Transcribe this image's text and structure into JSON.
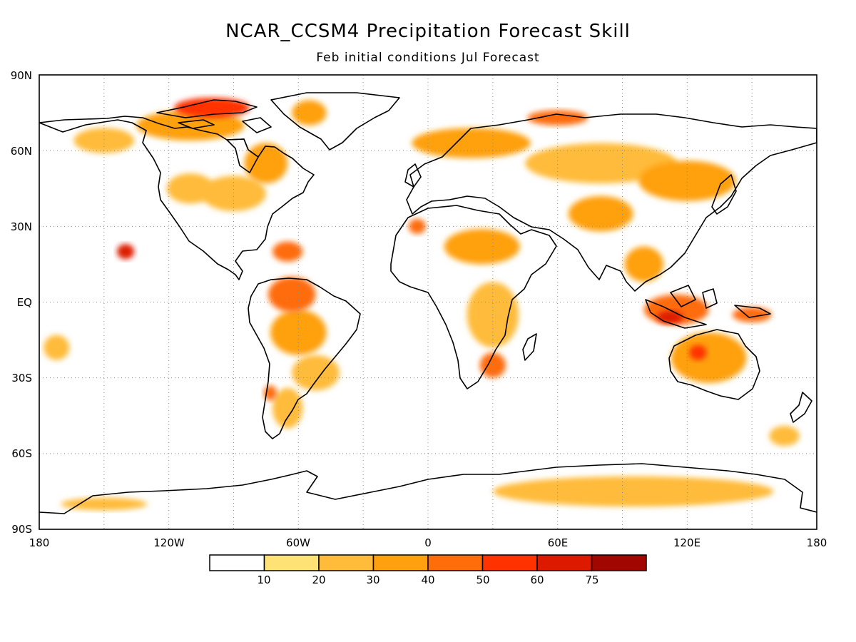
{
  "title": "NCAR_CCSM4 Precipitation Forecast Skill",
  "subtitle": "Feb initial conditions  Jul Forecast",
  "lat_labels": [
    "90N",
    "60N",
    "30N",
    "EQ",
    "30S",
    "60S",
    "90S"
  ],
  "lon_labels": [
    "180",
    "120W",
    "60W",
    "0",
    "60E",
    "120E",
    "180"
  ],
  "legend": {
    "labels": [
      "10",
      "20",
      "30",
      "40",
      "50",
      "60",
      "75"
    ],
    "colors": [
      "#ffffff",
      "#ffe276",
      "#ffbb3a",
      "#ffa00f",
      "#ff6c0a",
      "#ff3200",
      "#dd1a00",
      "#a10600"
    ]
  },
  "chart_data": {
    "type": "heatmap",
    "title": "NCAR_CCSM4 Precipitation Forecast Skill",
    "subtitle": "Feb initial conditions  Jul Forecast",
    "projection": "equirectangular",
    "x_range": [
      -180,
      180
    ],
    "y_range": [
      -90,
      90
    ],
    "x_ticks": [
      "180",
      "120W",
      "60W",
      "0",
      "60E",
      "120E",
      "180"
    ],
    "y_ticks": [
      "90N",
      "60N",
      "30N",
      "EQ",
      "30S",
      "60S",
      "90S"
    ],
    "grid": true,
    "levels": [
      10,
      20,
      30,
      40,
      50,
      60,
      75
    ],
    "level_colors": [
      "#ffffff",
      "#ffe276",
      "#ffbb3a",
      "#ffa00f",
      "#ff6c0a",
      "#ff3200",
      "#dd1a00",
      "#a10600"
    ],
    "regions": [
      {
        "lon": -110,
        "lat": 70,
        "w": 50,
        "h": 12,
        "level": 3
      },
      {
        "lon": -100,
        "lat": 77,
        "w": 35,
        "h": 8,
        "level": 5
      },
      {
        "lon": -150,
        "lat": 64,
        "w": 28,
        "h": 10,
        "level": 2
      },
      {
        "lon": -75,
        "lat": 55,
        "w": 20,
        "h": 16,
        "level": 3
      },
      {
        "lon": -55,
        "lat": 75,
        "w": 16,
        "h": 10,
        "level": 3
      },
      {
        "lon": -90,
        "lat": 43,
        "w": 30,
        "h": 14,
        "level": 2
      },
      {
        "lon": -110,
        "lat": 45,
        "w": 22,
        "h": 12,
        "level": 2
      },
      {
        "lon": -65,
        "lat": 20,
        "w": 14,
        "h": 8,
        "level": 4
      },
      {
        "lon": -140,
        "lat": 20,
        "w": 8,
        "h": 6,
        "level": 6
      },
      {
        "lon": -63,
        "lat": 3,
        "w": 22,
        "h": 14,
        "level": 4
      },
      {
        "lon": -60,
        "lat": -12,
        "w": 26,
        "h": 18,
        "level": 3
      },
      {
        "lon": -52,
        "lat": -28,
        "w": 22,
        "h": 14,
        "level": 2
      },
      {
        "lon": -65,
        "lat": -42,
        "w": 14,
        "h": 16,
        "level": 2
      },
      {
        "lon": -73,
        "lat": -36,
        "w": 6,
        "h": 6,
        "level": 4
      },
      {
        "lon": -172,
        "lat": -18,
        "w": 12,
        "h": 10,
        "level": 2
      },
      {
        "lon": 20,
        "lat": 63,
        "w": 55,
        "h": 12,
        "level": 3
      },
      {
        "lon": 80,
        "lat": 55,
        "w": 70,
        "h": 16,
        "level": 2
      },
      {
        "lon": 60,
        "lat": 73,
        "w": 28,
        "h": 6,
        "level": 4
      },
      {
        "lon": 120,
        "lat": 48,
        "w": 45,
        "h": 16,
        "level": 3
      },
      {
        "lon": 80,
        "lat": 35,
        "w": 30,
        "h": 14,
        "level": 3
      },
      {
        "lon": 25,
        "lat": 22,
        "w": 35,
        "h": 14,
        "level": 3
      },
      {
        "lon": -5,
        "lat": 30,
        "w": 8,
        "h": 6,
        "level": 4
      },
      {
        "lon": 30,
        "lat": -5,
        "w": 24,
        "h": 26,
        "level": 2
      },
      {
        "lon": 30,
        "lat": -25,
        "w": 12,
        "h": 10,
        "level": 4
      },
      {
        "lon": 115,
        "lat": -3,
        "w": 30,
        "h": 12,
        "level": 4
      },
      {
        "lon": 112,
        "lat": -6,
        "w": 12,
        "h": 5,
        "level": 6
      },
      {
        "lon": 150,
        "lat": -5,
        "w": 18,
        "h": 6,
        "level": 4
      },
      {
        "lon": 130,
        "lat": -22,
        "w": 35,
        "h": 20,
        "level": 3
      },
      {
        "lon": 125,
        "lat": -20,
        "w": 8,
        "h": 6,
        "level": 5
      },
      {
        "lon": 100,
        "lat": 15,
        "w": 18,
        "h": 14,
        "level": 3
      },
      {
        "lon": 95,
        "lat": -75,
        "w": 130,
        "h": 12,
        "level": 2
      },
      {
        "lon": 100,
        "lat": -77,
        "w": 70,
        "h": 5,
        "level": 1
      },
      {
        "lon": -150,
        "lat": -80,
        "w": 40,
        "h": 5,
        "level": 2
      },
      {
        "lon": 165,
        "lat": -53,
        "w": 14,
        "h": 8,
        "level": 2
      }
    ]
  }
}
